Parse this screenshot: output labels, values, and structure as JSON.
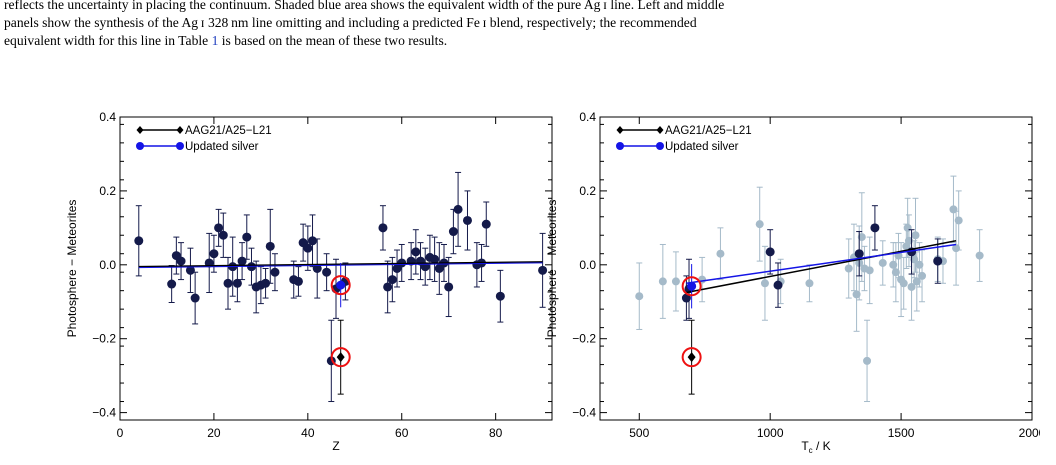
{
  "caption": {
    "line1": "reflects the uncertainty in placing the continuum. Shaded blue area shows the equivalent width of the pure Ag ɪ line. Left and middle",
    "line2": "panels show the synthesis of the Ag ɪ 328 nm line omitting and including a predicted Fe ɪ blend, respectively; the recommended",
    "line3_pre": "equivalent width for this line in Table ",
    "table_ref": "1",
    "line3_post": " is based on the mean of these two results."
  },
  "colors": {
    "dark": "#141a4a",
    "blue": "#1414e6",
    "gray": "#a5bac9",
    "grayErr": "#a5bac9",
    "red": "#ee1111",
    "black": "#000000"
  },
  "chart_data": [
    {
      "type": "scatter",
      "xlabel": "Z",
      "ylabel": "Photosphere − Meteorites",
      "xlim": [
        0,
        92
      ],
      "ylim": [
        -0.42,
        0.4
      ],
      "xticks": [
        0,
        20,
        40,
        60,
        80
      ],
      "xtick_labels": [
        "0",
        "20",
        "40",
        "60",
        "80"
      ],
      "yticks": [
        -0.4,
        -0.2,
        0.0,
        0.2,
        0.4
      ],
      "ytick_labels": [
        "−0.4",
        "−0.2",
        "0.0",
        "0.2",
        "0.4"
      ],
      "legend": {
        "placement": "top-left",
        "entries": [
          "AAG21/A25−L21",
          "Updated silver"
        ]
      },
      "fit_line": {
        "x": [
          4,
          90
        ],
        "y": [
          -0.005,
          0.008
        ]
      },
      "points": [
        {
          "x": 4,
          "y": 0.065,
          "e": 0.095
        },
        {
          "x": 11,
          "y": -0.052,
          "e": 0.05
        },
        {
          "x": 12,
          "y": 0.025,
          "e": 0.05
        },
        {
          "x": 13,
          "y": 0.01,
          "e": 0.05
        },
        {
          "x": 15,
          "y": -0.015,
          "e": 0.06
        },
        {
          "x": 16,
          "y": -0.09,
          "e": 0.07
        },
        {
          "x": 19,
          "y": 0.005,
          "e": 0.08
        },
        {
          "x": 20,
          "y": 0.03,
          "e": 0.05
        },
        {
          "x": 21,
          "y": 0.1,
          "e": 0.05
        },
        {
          "x": 22,
          "y": 0.08,
          "e": 0.06
        },
        {
          "x": 23,
          "y": -0.05,
          "e": 0.07
        },
        {
          "x": 24,
          "y": -0.005,
          "e": 0.08
        },
        {
          "x": 25,
          "y": -0.05,
          "e": 0.05
        },
        {
          "x": 26,
          "y": 0.01,
          "e": 0.05
        },
        {
          "x": 27,
          "y": 0.075,
          "e": 0.06
        },
        {
          "x": 28,
          "y": -0.005,
          "e": 0.05
        },
        {
          "x": 29,
          "y": -0.06,
          "e": 0.07
        },
        {
          "x": 30,
          "y": -0.055,
          "e": 0.05
        },
        {
          "x": 31,
          "y": -0.05,
          "e": 0.04
        },
        {
          "x": 32,
          "y": 0.05,
          "e": 0.1
        },
        {
          "x": 33,
          "y": -0.02,
          "e": 0.05
        },
        {
          "x": 37,
          "y": -0.04,
          "e": 0.05
        },
        {
          "x": 38,
          "y": -0.045,
          "e": 0.04
        },
        {
          "x": 39,
          "y": 0.06,
          "e": 0.05
        },
        {
          "x": 40,
          "y": 0.045,
          "e": 0.06
        },
        {
          "x": 41,
          "y": 0.065,
          "e": 0.07
        },
        {
          "x": 42,
          "y": -0.01,
          "e": 0.08
        },
        {
          "x": 44,
          "y": -0.02,
          "e": 0.05
        },
        {
          "x": 45,
          "y": -0.26,
          "e": 0.11
        },
        {
          "x": 46,
          "y": -0.065,
          "e": 0.08
        },
        {
          "x": 48,
          "y": -0.045,
          "e": 0.05
        },
        {
          "x": 56,
          "y": 0.1,
          "e": 0.06
        },
        {
          "x": 57,
          "y": -0.06,
          "e": 0.07
        },
        {
          "x": 58,
          "y": -0.04,
          "e": 0.06
        },
        {
          "x": 59,
          "y": -0.01,
          "e": 0.05
        },
        {
          "x": 60,
          "y": 0.005,
          "e": 0.05
        },
        {
          "x": 62,
          "y": 0.01,
          "e": 0.05
        },
        {
          "x": 63,
          "y": 0.035,
          "e": 0.06
        },
        {
          "x": 64,
          "y": 0.01,
          "e": 0.05
        },
        {
          "x": 65,
          "y": -0.005,
          "e": 0.05
        },
        {
          "x": 66,
          "y": 0.02,
          "e": 0.06
        },
        {
          "x": 67,
          "y": 0.015,
          "e": 0.06
        },
        {
          "x": 68,
          "y": -0.01,
          "e": 0.07
        },
        {
          "x": 69,
          "y": 0.005,
          "e": 0.05
        },
        {
          "x": 70,
          "y": -0.06,
          "e": 0.08
        },
        {
          "x": 71,
          "y": 0.09,
          "e": 0.06
        },
        {
          "x": 72,
          "y": 0.15,
          "e": 0.1
        },
        {
          "x": 74,
          "y": 0.12,
          "e": 0.08
        },
        {
          "x": 76,
          "y": 0.0,
          "e": 0.06
        },
        {
          "x": 77,
          "y": 0.005,
          "e": 0.05
        },
        {
          "x": 78,
          "y": 0.11,
          "e": 0.06
        },
        {
          "x": 81,
          "y": -0.085,
          "e": 0.07
        },
        {
          "x": 90,
          "y": -0.015,
          "e": 0.1
        }
      ],
      "old_silver": {
        "x": 47,
        "y": -0.25,
        "e": 0.1
      },
      "new_silver": {
        "x": 47,
        "y": -0.055,
        "e": 0.06
      }
    },
    {
      "type": "scatter",
      "xlabel": "T",
      "xlabel_sub": "c",
      "xlabel_tail": " / K",
      "ylabel": "Photosphere − Meteorites",
      "xlim": [
        350,
        2000
      ],
      "ylim": [
        -0.42,
        0.4
      ],
      "xticks": [
        500,
        1000,
        1500,
        2000
      ],
      "xtick_labels": [
        "500",
        "1000",
        "1500",
        "2000"
      ],
      "yticks": [
        -0.4,
        -0.2,
        0.0,
        0.2,
        0.4
      ],
      "ytick_labels": [
        "−0.4",
        "−0.2",
        "0.0",
        "0.2",
        "0.4"
      ],
      "legend": {
        "placement": "top-left",
        "entries": [
          "AAG21/A25−L21",
          "Updated silver"
        ]
      },
      "fit_black": {
        "x": [
          680,
          1710
        ],
        "y": [
          -0.075,
          0.065
        ]
      },
      "fit_blue": {
        "x": [
          680,
          1710
        ],
        "y": [
          -0.05,
          0.055
        ]
      },
      "gray_points": [
        {
          "x": 500,
          "y": -0.085,
          "e": 0.09
        },
        {
          "x": 590,
          "y": -0.045,
          "e": 0.1
        },
        {
          "x": 640,
          "y": -0.045,
          "e": 0.08
        },
        {
          "x": 740,
          "y": -0.04,
          "e": 0.06
        },
        {
          "x": 810,
          "y": 0.03,
          "e": 0.07
        },
        {
          "x": 960,
          "y": 0.11,
          "e": 0.1
        },
        {
          "x": 980,
          "y": -0.05,
          "e": 0.1
        },
        {
          "x": 1040,
          "y": -0.045,
          "e": 0.06
        },
        {
          "x": 1150,
          "y": -0.05,
          "e": 0.05
        },
        {
          "x": 1300,
          "y": -0.01,
          "e": 0.08
        },
        {
          "x": 1320,
          "y": 0.02,
          "e": 0.09
        },
        {
          "x": 1330,
          "y": -0.08,
          "e": 0.1
        },
        {
          "x": 1340,
          "y": 0.005,
          "e": 0.1
        },
        {
          "x": 1350,
          "y": 0.075,
          "e": 0.12
        },
        {
          "x": 1360,
          "y": -0.01,
          "e": 0.06
        },
        {
          "x": 1370,
          "y": -0.26,
          "e": 0.11
        },
        {
          "x": 1380,
          "y": -0.015,
          "e": 0.09
        },
        {
          "x": 1430,
          "y": 0.005,
          "e": 0.06
        },
        {
          "x": 1470,
          "y": 0.0,
          "e": 0.06
        },
        {
          "x": 1480,
          "y": -0.02,
          "e": 0.08
        },
        {
          "x": 1490,
          "y": 0.025,
          "e": 0.06
        },
        {
          "x": 1500,
          "y": -0.04,
          "e": 0.1
        },
        {
          "x": 1510,
          "y": -0.05,
          "e": 0.07
        },
        {
          "x": 1520,
          "y": 0.05,
          "e": 0.06
        },
        {
          "x": 1525,
          "y": 0.1,
          "e": 0.08
        },
        {
          "x": 1530,
          "y": 0.065,
          "e": 0.07
        },
        {
          "x": 1540,
          "y": -0.06,
          "e": 0.09
        },
        {
          "x": 1550,
          "y": 0.015,
          "e": 0.05
        },
        {
          "x": 1555,
          "y": 0.08,
          "e": 0.1
        },
        {
          "x": 1560,
          "y": -0.045,
          "e": 0.08
        },
        {
          "x": 1570,
          "y": 0.0,
          "e": 0.06
        },
        {
          "x": 1580,
          "y": -0.03,
          "e": 0.07
        },
        {
          "x": 1640,
          "y": 0.015,
          "e": 0.06
        },
        {
          "x": 1660,
          "y": 0.01,
          "e": 0.06
        },
        {
          "x": 1700,
          "y": 0.15,
          "e": 0.09
        },
        {
          "x": 1710,
          "y": 0.045,
          "e": 0.1
        },
        {
          "x": 1720,
          "y": 0.12,
          "e": 0.08
        },
        {
          "x": 1800,
          "y": 0.025,
          "e": 0.07
        }
      ],
      "dark_points": [
        {
          "x": 680,
          "y": -0.09,
          "e": 0.06
        },
        {
          "x": 690,
          "y": -0.065,
          "e": 0.08
        },
        {
          "x": 1000,
          "y": 0.035,
          "e": 0.06
        },
        {
          "x": 1030,
          "y": -0.055,
          "e": 0.06
        },
        {
          "x": 1340,
          "y": 0.03,
          "e": 0.06
        },
        {
          "x": 1400,
          "y": 0.1,
          "e": 0.06
        },
        {
          "x": 1540,
          "y": 0.035,
          "e": 0.06
        },
        {
          "x": 1640,
          "y": 0.01,
          "e": 0.06
        }
      ],
      "old_silver": {
        "x": 700,
        "y": -0.25,
        "e": 0.1
      },
      "new_silver": {
        "x": 700,
        "y": -0.058,
        "e": 0.06
      }
    }
  ]
}
